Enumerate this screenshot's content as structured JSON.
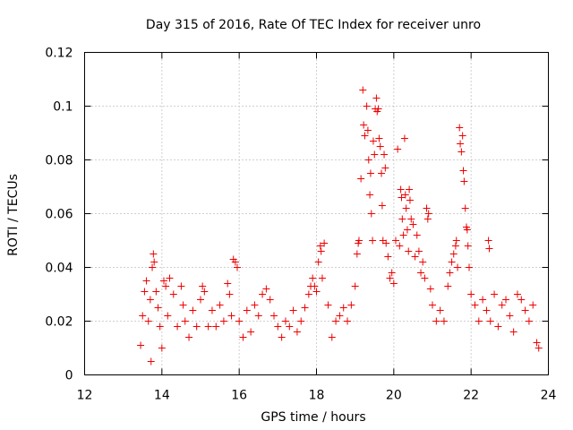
{
  "chart_data": {
    "type": "scatter",
    "title": "Day 315 of 2016, Rate Of TEC Index for receiver unro",
    "xlabel": "GPS time / hours",
    "ylabel": "ROTI / TECUs",
    "xlim": [
      12,
      24
    ],
    "ylim": [
      0,
      0.12
    ],
    "x_ticks": [
      12,
      14,
      16,
      18,
      20,
      22,
      24
    ],
    "x_tick_labels": [
      "12",
      "14",
      "16",
      "18",
      "20",
      "22",
      "24"
    ],
    "y_ticks": [
      0,
      0.02,
      0.04,
      0.06,
      0.08,
      0.1,
      0.12
    ],
    "y_tick_labels": [
      "0",
      "0.02",
      "0.04",
      "0.06",
      "0.08",
      "0.1",
      "0.12"
    ],
    "grid": true,
    "marker": "+",
    "color": "#ee0000",
    "series": [
      {
        "name": "ROTI",
        "points": [
          [
            13.45,
            0.011
          ],
          [
            13.5,
            0.022
          ],
          [
            13.55,
            0.031
          ],
          [
            13.6,
            0.035
          ],
          [
            13.65,
            0.02
          ],
          [
            13.7,
            0.028
          ],
          [
            13.72,
            0.005
          ],
          [
            13.75,
            0.04
          ],
          [
            13.78,
            0.045
          ],
          [
            13.8,
            0.042
          ],
          [
            13.85,
            0.031
          ],
          [
            13.9,
            0.025
          ],
          [
            13.95,
            0.018
          ],
          [
            14.0,
            0.01
          ],
          [
            14.05,
            0.035
          ],
          [
            14.1,
            0.033
          ],
          [
            14.15,
            0.022
          ],
          [
            14.2,
            0.036
          ],
          [
            14.3,
            0.03
          ],
          [
            14.4,
            0.018
          ],
          [
            14.5,
            0.033
          ],
          [
            14.55,
            0.026
          ],
          [
            14.6,
            0.02
          ],
          [
            14.7,
            0.014
          ],
          [
            14.8,
            0.024
          ],
          [
            14.9,
            0.018
          ],
          [
            15.0,
            0.028
          ],
          [
            15.05,
            0.033
          ],
          [
            15.1,
            0.031
          ],
          [
            15.2,
            0.018
          ],
          [
            15.3,
            0.024
          ],
          [
            15.4,
            0.018
          ],
          [
            15.5,
            0.026
          ],
          [
            15.6,
            0.02
          ],
          [
            15.7,
            0.034
          ],
          [
            15.75,
            0.03
          ],
          [
            15.8,
            0.022
          ],
          [
            15.85,
            0.043
          ],
          [
            15.9,
            0.042
          ],
          [
            15.95,
            0.04
          ],
          [
            16.0,
            0.02
          ],
          [
            16.1,
            0.014
          ],
          [
            16.2,
            0.024
          ],
          [
            16.3,
            0.016
          ],
          [
            16.4,
            0.026
          ],
          [
            16.5,
            0.022
          ],
          [
            16.6,
            0.03
          ],
          [
            16.7,
            0.032
          ],
          [
            16.8,
            0.028
          ],
          [
            16.9,
            0.022
          ],
          [
            17.0,
            0.018
          ],
          [
            17.1,
            0.014
          ],
          [
            17.2,
            0.02
          ],
          [
            17.3,
            0.018
          ],
          [
            17.4,
            0.024
          ],
          [
            17.5,
            0.016
          ],
          [
            17.6,
            0.02
          ],
          [
            17.7,
            0.025
          ],
          [
            17.8,
            0.03
          ],
          [
            17.85,
            0.033
          ],
          [
            17.9,
            0.036
          ],
          [
            17.95,
            0.033
          ],
          [
            18.0,
            0.031
          ],
          [
            18.05,
            0.042
          ],
          [
            18.1,
            0.048
          ],
          [
            18.12,
            0.046
          ],
          [
            18.15,
            0.036
          ],
          [
            18.2,
            0.049
          ],
          [
            18.3,
            0.026
          ],
          [
            18.4,
            0.014
          ],
          [
            18.5,
            0.02
          ],
          [
            18.6,
            0.022
          ],
          [
            18.7,
            0.025
          ],
          [
            18.8,
            0.02
          ],
          [
            18.9,
            0.026
          ],
          [
            19.0,
            0.033
          ],
          [
            19.05,
            0.045
          ],
          [
            19.08,
            0.049
          ],
          [
            19.1,
            0.05
          ],
          [
            19.15,
            0.073
          ],
          [
            19.2,
            0.106
          ],
          [
            19.22,
            0.093
          ],
          [
            19.25,
            0.089
          ],
          [
            19.3,
            0.1
          ],
          [
            19.33,
            0.091
          ],
          [
            19.35,
            0.08
          ],
          [
            19.38,
            0.067
          ],
          [
            19.4,
            0.075
          ],
          [
            19.42,
            0.06
          ],
          [
            19.45,
            0.05
          ],
          [
            19.47,
            0.087
          ],
          [
            19.5,
            0.082
          ],
          [
            19.52,
            0.099
          ],
          [
            19.55,
            0.103
          ],
          [
            19.57,
            0.098
          ],
          [
            19.6,
            0.099
          ],
          [
            19.62,
            0.088
          ],
          [
            19.65,
            0.085
          ],
          [
            19.68,
            0.075
          ],
          [
            19.7,
            0.063
          ],
          [
            19.72,
            0.05
          ],
          [
            19.75,
            0.082
          ],
          [
            19.78,
            0.077
          ],
          [
            19.8,
            0.049
          ],
          [
            19.85,
            0.044
          ],
          [
            19.9,
            0.036
          ],
          [
            19.95,
            0.038
          ],
          [
            20.0,
            0.034
          ],
          [
            20.05,
            0.05
          ],
          [
            20.1,
            0.084
          ],
          [
            20.15,
            0.048
          ],
          [
            20.18,
            0.069
          ],
          [
            20.2,
            0.066
          ],
          [
            20.22,
            0.058
          ],
          [
            20.25,
            0.052
          ],
          [
            20.28,
            0.088
          ],
          [
            20.3,
            0.067
          ],
          [
            20.32,
            0.062
          ],
          [
            20.35,
            0.054
          ],
          [
            20.38,
            0.046
          ],
          [
            20.4,
            0.069
          ],
          [
            20.42,
            0.065
          ],
          [
            20.45,
            0.058
          ],
          [
            20.5,
            0.056
          ],
          [
            20.55,
            0.044
          ],
          [
            20.6,
            0.052
          ],
          [
            20.65,
            0.046
          ],
          [
            20.7,
            0.038
          ],
          [
            20.75,
            0.042
          ],
          [
            20.8,
            0.036
          ],
          [
            20.85,
            0.062
          ],
          [
            20.88,
            0.058
          ],
          [
            20.9,
            0.06
          ],
          [
            20.95,
            0.032
          ],
          [
            21.0,
            0.026
          ],
          [
            21.1,
            0.02
          ],
          [
            21.2,
            0.024
          ],
          [
            21.3,
            0.02
          ],
          [
            21.4,
            0.033
          ],
          [
            21.45,
            0.038
          ],
          [
            21.5,
            0.042
          ],
          [
            21.55,
            0.045
          ],
          [
            21.6,
            0.048
          ],
          [
            21.62,
            0.05
          ],
          [
            21.65,
            0.04
          ],
          [
            21.7,
            0.092
          ],
          [
            21.72,
            0.086
          ],
          [
            21.75,
            0.083
          ],
          [
            21.78,
            0.089
          ],
          [
            21.8,
            0.076
          ],
          [
            21.82,
            0.072
          ],
          [
            21.85,
            0.062
          ],
          [
            21.88,
            0.055
          ],
          [
            21.9,
            0.054
          ],
          [
            21.92,
            0.048
          ],
          [
            21.95,
            0.04
          ],
          [
            22.0,
            0.03
          ],
          [
            22.1,
            0.026
          ],
          [
            22.2,
            0.02
          ],
          [
            22.3,
            0.028
          ],
          [
            22.4,
            0.024
          ],
          [
            22.45,
            0.05
          ],
          [
            22.47,
            0.047
          ],
          [
            22.5,
            0.02
          ],
          [
            22.6,
            0.03
          ],
          [
            22.7,
            0.018
          ],
          [
            22.8,
            0.026
          ],
          [
            22.9,
            0.028
          ],
          [
            23.0,
            0.022
          ],
          [
            23.1,
            0.016
          ],
          [
            23.2,
            0.03
          ],
          [
            23.3,
            0.028
          ],
          [
            23.4,
            0.024
          ],
          [
            23.5,
            0.02
          ],
          [
            23.6,
            0.026
          ],
          [
            23.7,
            0.012
          ],
          [
            23.75,
            0.01
          ]
        ]
      }
    ]
  }
}
